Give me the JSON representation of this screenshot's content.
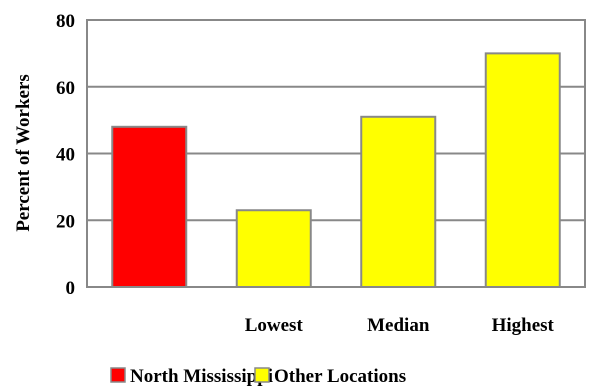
{
  "chart_data": {
    "type": "bar",
    "title": "",
    "xlabel": "",
    "ylabel": "Percent of Workers",
    "ylim": [
      0,
      80
    ],
    "yticks": [
      0,
      20,
      40,
      60,
      80
    ],
    "grid": true,
    "legend_placement": "bottom",
    "categories": [
      "",
      "Lowest",
      "Median",
      "Highest"
    ],
    "bars": [
      {
        "category": "",
        "value": 48,
        "series": "North Mississippi",
        "color": "#ff0000"
      },
      {
        "category": "Lowest",
        "value": 23,
        "series": "Other Locations",
        "color": "#ffff00"
      },
      {
        "category": "Median",
        "value": 51,
        "series": "Other Locations",
        "color": "#ffff00"
      },
      {
        "category": "Highest",
        "value": 70,
        "series": "Other Locations",
        "color": "#ffff00"
      }
    ],
    "legend": [
      {
        "name": "North Mississippi",
        "color": "#ff0000"
      },
      {
        "name": "Other Locations",
        "color": "#ffff00"
      }
    ]
  }
}
